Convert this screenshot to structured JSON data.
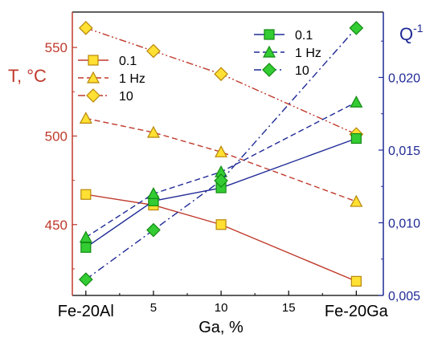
{
  "chart_data": {
    "type": "line",
    "xlabel": "Ga, %",
    "x": [
      0,
      5,
      10,
      20
    ],
    "x_ticks": [
      {
        "value": 0,
        "label": "Fe-20Al"
      },
      {
        "value": 5,
        "label": "5"
      },
      {
        "value": 10,
        "label": "10"
      },
      {
        "value": 15,
        "label": "15"
      },
      {
        "value": 20,
        "label": "Fe-20Ga"
      }
    ],
    "xlim": [
      -1,
      22
    ],
    "left_axis": {
      "label": "T, °C",
      "color": "#c0392b",
      "ylim": [
        410,
        570
      ],
      "ticks": [
        450,
        500,
        550
      ]
    },
    "right_axis": {
      "label_base": "Q",
      "label_sup": "-1",
      "color": "#1f2a96",
      "ylim": [
        0.005,
        0.0245
      ],
      "ticks": [
        0.005,
        0.01,
        0.015,
        0.02
      ],
      "tick_labels": [
        "0,005",
        "0,010",
        "0,015",
        "0,020"
      ]
    },
    "series": [
      {
        "name": "0.1",
        "axis": "left",
        "marker": "square",
        "line": "solid",
        "line_color": "#c0392b",
        "fill": "#ffe033",
        "stroke": "#b7860b",
        "values": [
          467,
          461,
          450,
          418
        ]
      },
      {
        "name": "1 Hz",
        "axis": "left",
        "marker": "triangle",
        "line": "dash",
        "line_color": "#c0392b",
        "fill": "#ffe033",
        "stroke": "#b7860b",
        "values": [
          510,
          502,
          491,
          463
        ]
      },
      {
        "name": "10",
        "axis": "left",
        "marker": "diamond",
        "line": "dashdotdot",
        "line_color": "#c0392b",
        "fill": "#ffe033",
        "stroke": "#b7860b",
        "values": [
          561,
          548,
          535,
          501
        ]
      },
      {
        "name": "0.1",
        "axis": "right",
        "marker": "square",
        "line": "solid",
        "line_color": "#1f2a96",
        "fill": "#33cc33",
        "stroke": "#138a13",
        "values": [
          0.0083,
          0.0115,
          0.0124,
          0.0158
        ]
      },
      {
        "name": "1 Hz",
        "axis": "right",
        "marker": "triangle",
        "line": "dash",
        "line_color": "#1f2a96",
        "fill": "#33cc33",
        "stroke": "#138a13",
        "values": [
          0.009,
          0.012,
          0.0135,
          0.0183
        ]
      },
      {
        "name": "10",
        "axis": "right",
        "marker": "diamond",
        "line": "dashdot",
        "line_color": "#1f2a96",
        "fill": "#33cc33",
        "stroke": "#138a13",
        "values": [
          0.0061,
          0.0095,
          0.0129,
          0.0234
        ]
      }
    ],
    "legends": [
      {
        "position": "top-left",
        "series_indices": [
          0,
          1,
          2
        ]
      },
      {
        "position": "top-right",
        "series_indices": [
          3,
          4,
          5
        ]
      }
    ],
    "grid": false
  }
}
